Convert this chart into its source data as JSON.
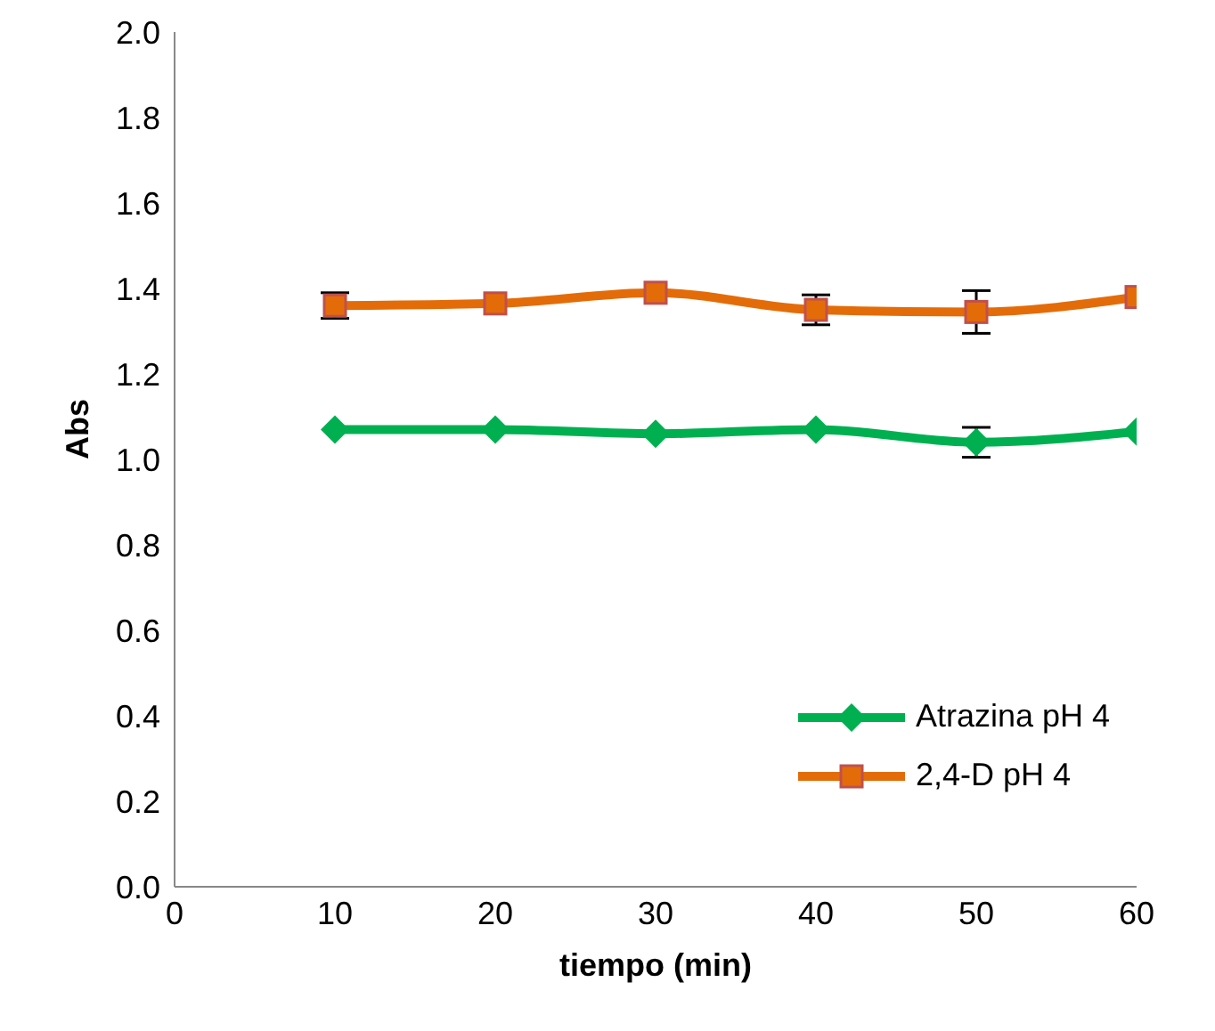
{
  "chart_data": {
    "type": "line",
    "xlabel": "tiempo (min)",
    "ylabel": "Abs",
    "x": [
      10,
      20,
      30,
      40,
      50,
      60
    ],
    "series": [
      {
        "name": "Atrazina pH 4",
        "color": "#00b050",
        "marker": "diamond",
        "values": [
          1.07,
          1.07,
          1.06,
          1.07,
          1.04,
          1.065
        ],
        "errors": [
          null,
          null,
          null,
          null,
          0.035,
          null
        ]
      },
      {
        "name": "2,4-D pH 4",
        "color": "#e36c09",
        "marker": "square",
        "values": [
          1.36,
          1.365,
          1.39,
          1.35,
          1.345,
          1.38
        ],
        "errors": [
          0.03,
          null,
          null,
          0.035,
          0.05,
          null
        ]
      }
    ],
    "xlim": [
      0,
      60
    ],
    "xticks": [
      0,
      10,
      20,
      30,
      40,
      50,
      60
    ],
    "ylim": [
      0,
      2
    ],
    "yticks": [
      {
        "value": 0,
        "label": "0.0"
      },
      0.2,
      0.4,
      0.6,
      0.8,
      {
        "value": 1,
        "label": "1.0"
      },
      1.2,
      1.4,
      1.6,
      1.8,
      {
        "value": 2,
        "label": "2.0"
      }
    ],
    "grid": false,
    "legend": "bottom right"
  }
}
